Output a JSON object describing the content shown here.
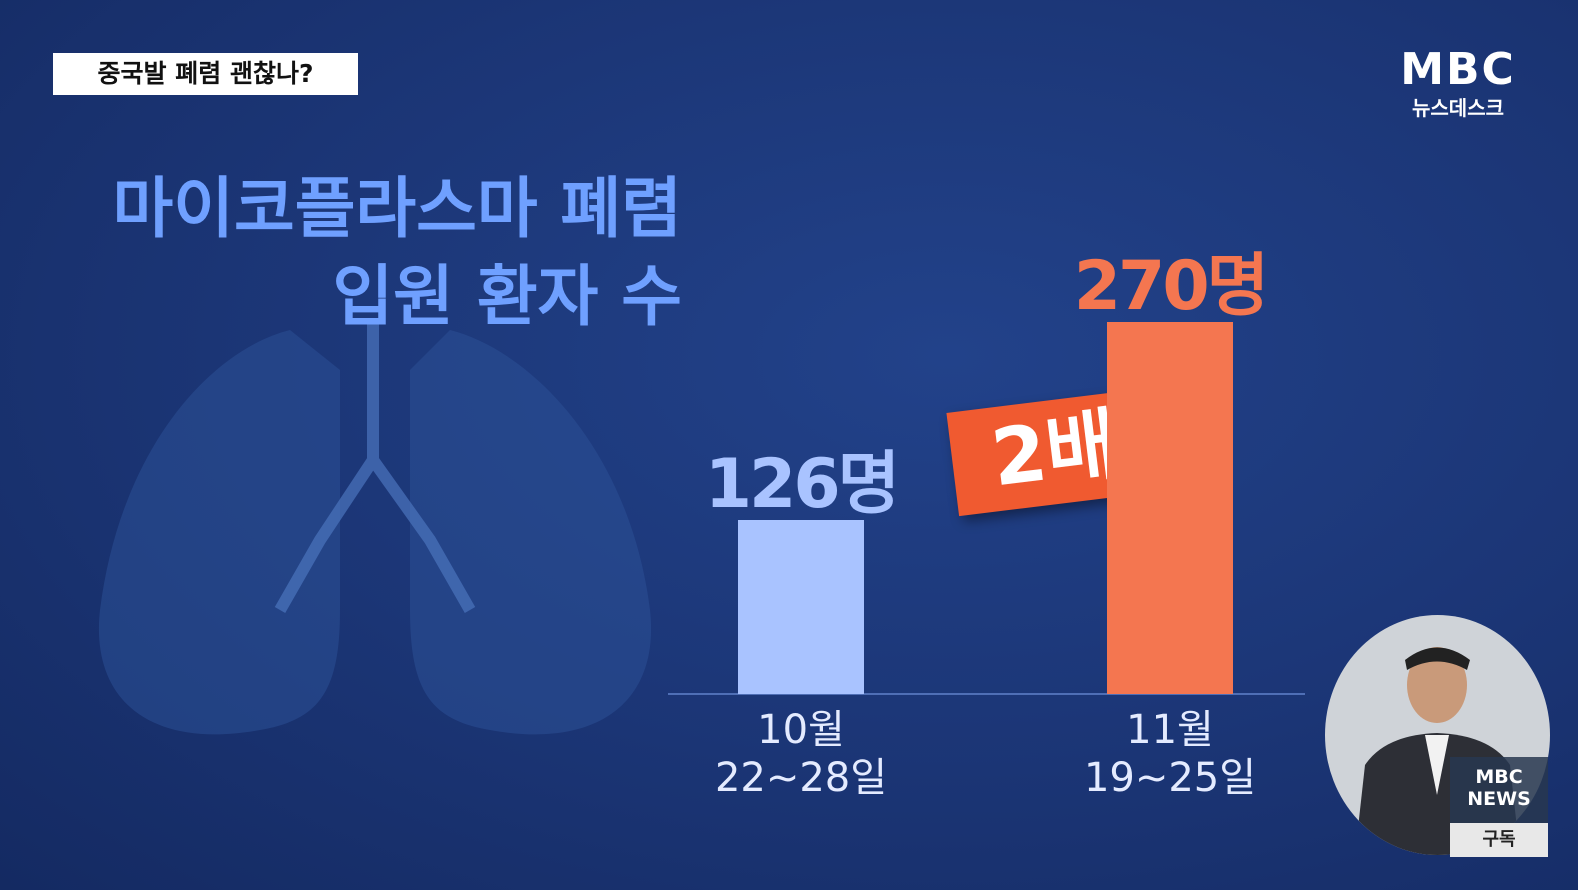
{
  "banner": "중국발 폐렴 괜찮나?",
  "logo": {
    "brand": "MBC",
    "program": "뉴스데스크"
  },
  "chart_data": {
    "type": "bar",
    "title": "마이코플라스마 폐렴\n입원 환자 수",
    "categories": [
      "10월\n22~28일",
      "11월\n19~25일"
    ],
    "values": [
      126,
      270
    ],
    "value_labels": [
      "126명",
      "270명"
    ],
    "colors": [
      "#a9c3ff",
      "#f47650"
    ],
    "annotation": "2배"
  },
  "sign_language": {
    "brand": "MBC\nNEWS",
    "subscribe": "구독"
  }
}
